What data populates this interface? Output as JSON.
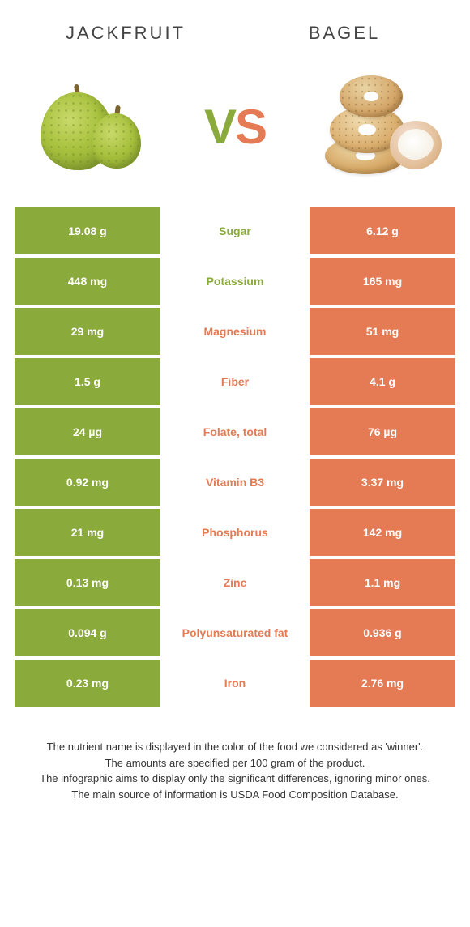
{
  "header": {
    "left_title": "JACKFRUIT",
    "right_title": "BAGEL",
    "vs_v": "V",
    "vs_s": "S"
  },
  "colors": {
    "green": "#8aaa3b",
    "orange": "#e57b54",
    "text": "#444444"
  },
  "table": {
    "rows": [
      {
        "left": "19.08 g",
        "label": "Sugar",
        "right": "6.12 g",
        "winner": "green"
      },
      {
        "left": "448 mg",
        "label": "Potassium",
        "right": "165 mg",
        "winner": "green"
      },
      {
        "left": "29 mg",
        "label": "Magnesium",
        "right": "51 mg",
        "winner": "orange"
      },
      {
        "left": "1.5 g",
        "label": "Fiber",
        "right": "4.1 g",
        "winner": "orange"
      },
      {
        "left": "24 µg",
        "label": "Folate, total",
        "right": "76 µg",
        "winner": "orange"
      },
      {
        "left": "0.92 mg",
        "label": "Vitamin B3",
        "right": "3.37 mg",
        "winner": "orange"
      },
      {
        "left": "21 mg",
        "label": "Phosphorus",
        "right": "142 mg",
        "winner": "orange"
      },
      {
        "left": "0.13 mg",
        "label": "Zinc",
        "right": "1.1 mg",
        "winner": "orange"
      },
      {
        "left": "0.094 g",
        "label": "Polyunsaturated fat",
        "right": "0.936 g",
        "winner": "orange"
      },
      {
        "left": "0.23 mg",
        "label": "Iron",
        "right": "2.76 mg",
        "winner": "orange"
      }
    ]
  },
  "notes": {
    "line1": "The nutrient name is displayed in the color of the food we considered as 'winner'.",
    "line2": "The amounts are specified per 100 gram of the product.",
    "line3": "The infographic aims to display only the significant differences, ignoring minor ones.",
    "line4": "The main source of information is USDA Food Composition Database."
  }
}
